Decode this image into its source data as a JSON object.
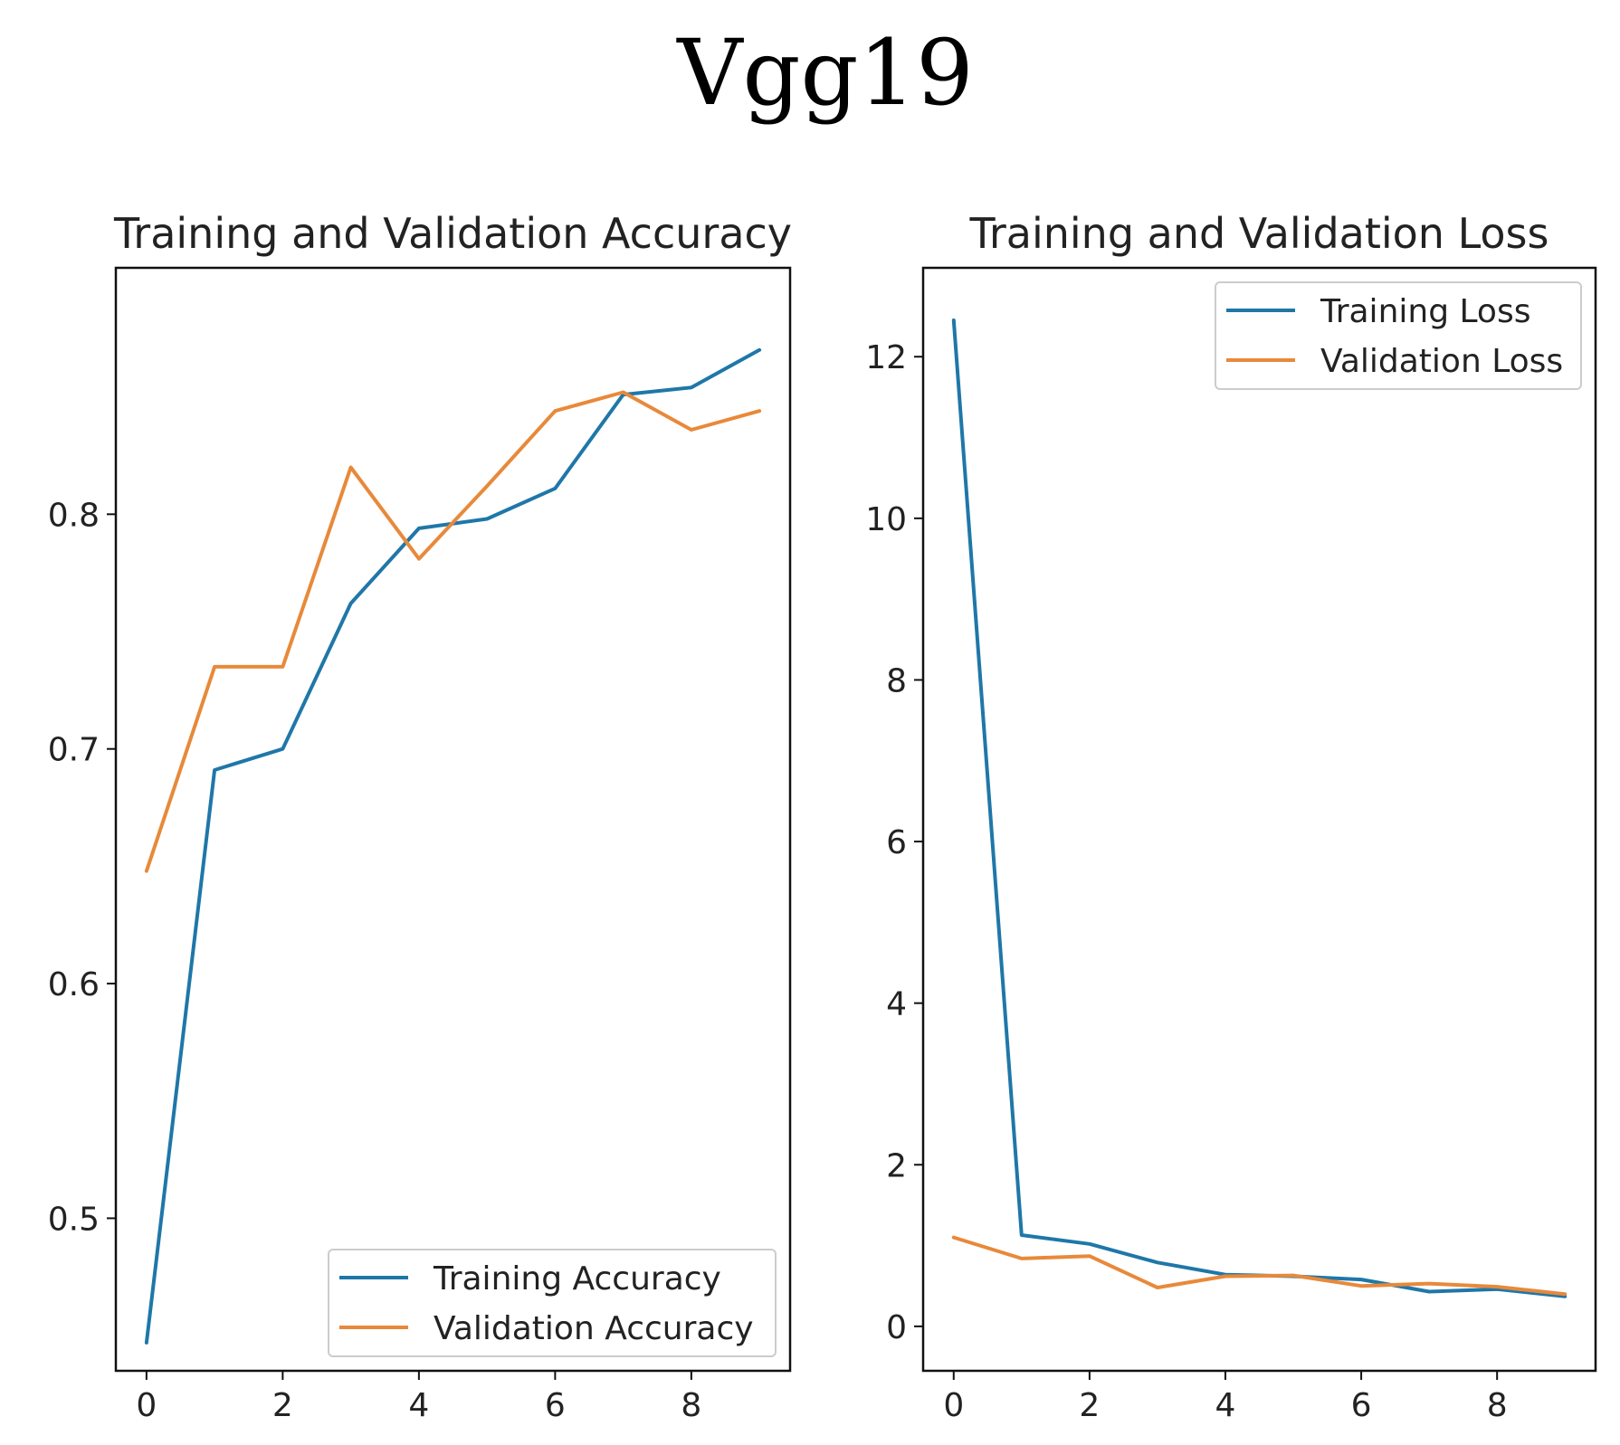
{
  "figure": {
    "suptitle": "Vgg19"
  },
  "colors": {
    "training": "#1f77a8",
    "validation": "#e8893a"
  },
  "chart_data": [
    {
      "type": "line",
      "title": "Training and Validation Accuracy",
      "xlabel": "",
      "ylabel": "",
      "x": [
        0,
        1,
        2,
        3,
        4,
        5,
        6,
        7,
        8,
        9
      ],
      "xlim": [
        -0.45,
        9.45
      ],
      "ylim": [
        0.435,
        0.905
      ],
      "xticks": [
        0,
        2,
        4,
        6,
        8
      ],
      "xtick_labels": [
        "0",
        "2",
        "4",
        "6",
        "8"
      ],
      "yticks": [
        0.5,
        0.6,
        0.7,
        0.8
      ],
      "ytick_labels": [
        "0.5",
        "0.6",
        "0.7",
        "0.8"
      ],
      "legend_position": "lower-right",
      "series": [
        {
          "name": "Training Accuracy",
          "color_key": "training",
          "values": [
            0.447,
            0.691,
            0.7,
            0.762,
            0.794,
            0.798,
            0.811,
            0.851,
            0.854,
            0.87
          ]
        },
        {
          "name": "Validation Accuracy",
          "color_key": "validation",
          "values": [
            0.648,
            0.735,
            0.735,
            0.82,
            0.781,
            0.812,
            0.844,
            0.852,
            0.836,
            0.844
          ]
        }
      ]
    },
    {
      "type": "line",
      "title": "Training and Validation Loss",
      "xlabel": "",
      "ylabel": "",
      "x": [
        0,
        1,
        2,
        3,
        4,
        5,
        6,
        7,
        8,
        9
      ],
      "xlim": [
        -0.45,
        9.45
      ],
      "ylim": [
        -0.55,
        13.1
      ],
      "xticks": [
        0,
        2,
        4,
        6,
        8
      ],
      "xtick_labels": [
        "0",
        "2",
        "4",
        "6",
        "8"
      ],
      "yticks": [
        0,
        2,
        4,
        6,
        8,
        10,
        12
      ],
      "ytick_labels": [
        "0",
        "2",
        "4",
        "6",
        "8",
        "10",
        "12"
      ],
      "legend_position": "upper-right",
      "series": [
        {
          "name": "Training Loss",
          "color_key": "training",
          "values": [
            12.45,
            1.13,
            1.02,
            0.79,
            0.64,
            0.62,
            0.58,
            0.43,
            0.46,
            0.37
          ]
        },
        {
          "name": "Validation Loss",
          "color_key": "validation",
          "values": [
            1.1,
            0.84,
            0.87,
            0.48,
            0.62,
            0.63,
            0.5,
            0.53,
            0.49,
            0.4
          ]
        }
      ]
    }
  ]
}
